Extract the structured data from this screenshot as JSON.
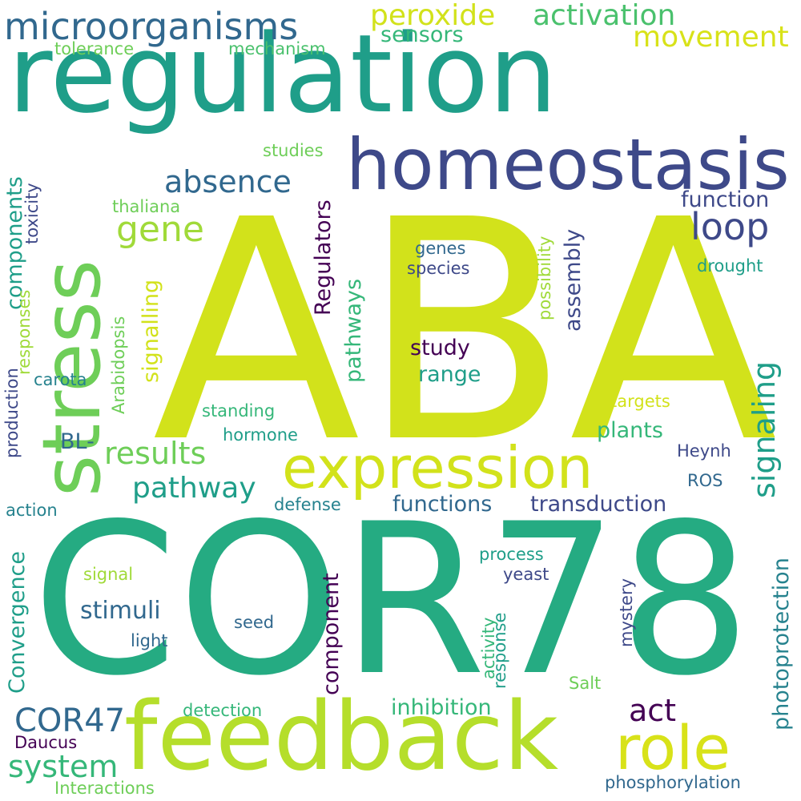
{
  "palette": {
    "background": "#ffffff",
    "yellow_green": "#d2e21b",
    "lime": "#b5de2b",
    "green": "#6ece58",
    "teal_green": "#35b779",
    "teal": "#1f9e89",
    "dark_teal": "#26828e",
    "steel_blue": "#31688e",
    "indigo": "#3e4989",
    "purple": "#440154"
  },
  "words": [
    {
      "text": "ABA",
      "color": "#d2e21b",
      "orientation": "horizontal"
    },
    {
      "text": "COR78",
      "color": "#25ab82",
      "orientation": "horizontal"
    },
    {
      "text": "regulation",
      "color": "#1f9e89",
      "orientation": "horizontal"
    },
    {
      "text": "feedback",
      "color": "#b5de2b",
      "orientation": "horizontal"
    },
    {
      "text": "stress",
      "color": "#6ece58",
      "orientation": "vertical"
    },
    {
      "text": "homeostasis",
      "color": "#3e4989",
      "orientation": "horizontal"
    },
    {
      "text": "expression",
      "color": "#d2e21b",
      "orientation": "horizontal"
    },
    {
      "text": "role",
      "color": "#d8e219",
      "orientation": "horizontal"
    },
    {
      "text": "microorganisms",
      "color": "#31688e",
      "orientation": "horizontal"
    },
    {
      "text": "activation",
      "color": "#4ac16d",
      "orientation": "horizontal"
    },
    {
      "text": "peroxide",
      "color": "#d2e21b",
      "orientation": "horizontal"
    },
    {
      "text": "movement",
      "color": "#d8e219",
      "orientation": "horizontal"
    },
    {
      "text": "sensors",
      "color": "#35b779",
      "orientation": "horizontal"
    },
    {
      "text": "tolerance",
      "color": "#6ece58",
      "orientation": "horizontal"
    },
    {
      "text": "mechanism",
      "color": "#4ac16d",
      "orientation": "horizontal"
    },
    {
      "text": "absence",
      "color": "#31688e",
      "orientation": "horizontal"
    },
    {
      "text": "gene",
      "color": "#a0da39",
      "orientation": "horizontal"
    },
    {
      "text": "loop",
      "color": "#3e4989",
      "orientation": "horizontal"
    },
    {
      "text": "function",
      "color": "#3e4989",
      "orientation": "horizontal"
    },
    {
      "text": "studies",
      "color": "#6ece58",
      "orientation": "horizontal"
    },
    {
      "text": "signaling",
      "color": "#1f9e89",
      "orientation": "vertical"
    },
    {
      "text": "results",
      "color": "#6ece58",
      "orientation": "horizontal"
    },
    {
      "text": "pathway",
      "color": "#1f9e89",
      "orientation": "horizontal"
    },
    {
      "text": "transduction",
      "color": "#3e4989",
      "orientation": "horizontal"
    },
    {
      "text": "functions",
      "color": "#31688e",
      "orientation": "horizontal"
    },
    {
      "text": "components",
      "color": "#1f9e89",
      "orientation": "vertical"
    },
    {
      "text": "toxicity",
      "color": "#3e4989",
      "orientation": "vertical"
    },
    {
      "text": "thaliana",
      "color": "#6ece58",
      "orientation": "horizontal"
    },
    {
      "text": "genes",
      "color": "#31688e",
      "orientation": "horizontal"
    },
    {
      "text": "species",
      "color": "#3e4989",
      "orientation": "horizontal"
    },
    {
      "text": "drought",
      "color": "#1f9e89",
      "orientation": "horizontal"
    },
    {
      "text": "Regulators",
      "color": "#440154",
      "orientation": "vertical"
    },
    {
      "text": "assembly",
      "color": "#3e4989",
      "orientation": "vertical"
    },
    {
      "text": "possibility",
      "color": "#a0da39",
      "orientation": "vertical"
    },
    {
      "text": "signalling",
      "color": "#d2e21b",
      "orientation": "vertical"
    },
    {
      "text": "responses",
      "color": "#a0da39",
      "orientation": "vertical"
    },
    {
      "text": "study",
      "color": "#440154",
      "orientation": "horizontal"
    },
    {
      "text": "range",
      "color": "#1f9e89",
      "orientation": "horizontal"
    },
    {
      "text": "pathways",
      "color": "#35b779",
      "orientation": "vertical"
    },
    {
      "text": "production",
      "color": "#3e4989",
      "orientation": "vertical"
    },
    {
      "text": "carota",
      "color": "#26828e",
      "orientation": "horizontal"
    },
    {
      "text": "Arabidopsis",
      "color": "#6ece58",
      "orientation": "vertical"
    },
    {
      "text": "targets",
      "color": "#d2e21b",
      "orientation": "horizontal"
    },
    {
      "text": "standing",
      "color": "#35b779",
      "orientation": "horizontal"
    },
    {
      "text": "plants",
      "color": "#35b779",
      "orientation": "horizontal"
    },
    {
      "text": "BL-",
      "color": "#31688e",
      "orientation": "horizontal"
    },
    {
      "text": "hormone",
      "color": "#1f9e89",
      "orientation": "horizontal"
    },
    {
      "text": "Heynh",
      "color": "#3e4989",
      "orientation": "horizontal"
    },
    {
      "text": "ROS",
      "color": "#31688e",
      "orientation": "horizontal"
    },
    {
      "text": "photoprotection",
      "color": "#26828e",
      "orientation": "vertical"
    },
    {
      "text": "action",
      "color": "#26828e",
      "orientation": "horizontal"
    },
    {
      "text": "defense",
      "color": "#26828e",
      "orientation": "horizontal"
    },
    {
      "text": "Convergence",
      "color": "#1f9e89",
      "orientation": "vertical"
    },
    {
      "text": "process",
      "color": "#1f9e89",
      "orientation": "horizontal"
    },
    {
      "text": "signal",
      "color": "#a0da39",
      "orientation": "horizontal"
    },
    {
      "text": "yeast",
      "color": "#3e4989",
      "orientation": "horizontal"
    },
    {
      "text": "component",
      "color": "#440154",
      "orientation": "vertical"
    },
    {
      "text": "mystery",
      "color": "#3e4989",
      "orientation": "vertical"
    },
    {
      "text": "stimuli",
      "color": "#31688e",
      "orientation": "horizontal"
    },
    {
      "text": "activity",
      "color": "#35b779",
      "orientation": "vertical"
    },
    {
      "text": "response",
      "color": "#1f9e89",
      "orientation": "vertical"
    },
    {
      "text": "seed",
      "color": "#31688e",
      "orientation": "horizontal"
    },
    {
      "text": "light",
      "color": "#31688e",
      "orientation": "horizontal"
    },
    {
      "text": "Salt",
      "color": "#6ece58",
      "orientation": "horizontal"
    },
    {
      "text": "act",
      "color": "#440154",
      "orientation": "horizontal"
    },
    {
      "text": "inhibition",
      "color": "#35b779",
      "orientation": "horizontal"
    },
    {
      "text": "COR47",
      "color": "#31688e",
      "orientation": "horizontal"
    },
    {
      "text": "detection",
      "color": "#35b779",
      "orientation": "horizontal"
    },
    {
      "text": "Daucus",
      "color": "#440154",
      "orientation": "horizontal"
    },
    {
      "text": "system",
      "color": "#35b779",
      "orientation": "horizontal"
    },
    {
      "text": "Interactions",
      "color": "#6ece58",
      "orientation": "horizontal"
    },
    {
      "text": "phosphorylation",
      "color": "#31688e",
      "orientation": "horizontal"
    }
  ]
}
